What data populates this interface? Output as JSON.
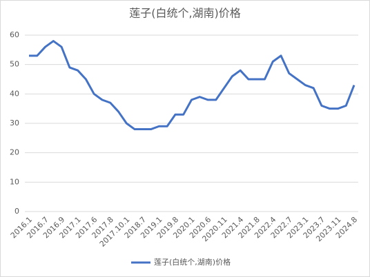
{
  "chart_data": {
    "type": "line",
    "title": "莲子(白统个,湖南)价格",
    "categories": [
      "2016.1",
      null,
      "2016.7",
      null,
      "2016.9",
      null,
      "2017.1",
      null,
      "2017.6",
      null,
      "2017.8",
      null,
      "2017.10.1",
      null,
      "2018.7",
      null,
      "2019.1",
      null,
      "2019.8",
      null,
      "2020.1",
      null,
      "2020.6",
      null,
      "2020.11",
      null,
      "2021.4",
      null,
      "2021.8",
      null,
      "2022.4",
      null,
      "2022.7",
      null,
      "2023.1",
      null,
      "2023.7",
      null,
      "2023.11",
      null,
      "2024.8"
    ],
    "series": [
      {
        "name": "莲子(白统个,湖南)价格",
        "color": "#4472c4",
        "values": [
          53,
          53,
          56,
          58,
          56,
          49,
          48,
          45,
          40,
          38,
          37,
          34,
          30,
          28,
          28,
          28,
          29,
          29,
          33,
          33,
          38,
          39,
          38,
          38,
          42,
          46,
          48,
          45,
          45,
          45,
          51,
          53,
          47,
          45,
          43,
          42,
          36,
          35,
          35,
          36,
          43
        ]
      }
    ],
    "ylim": [
      0,
      60
    ],
    "yticks": [
      0,
      10,
      20,
      30,
      40,
      50,
      60
    ],
    "grid": true,
    "legend": "bottom"
  }
}
